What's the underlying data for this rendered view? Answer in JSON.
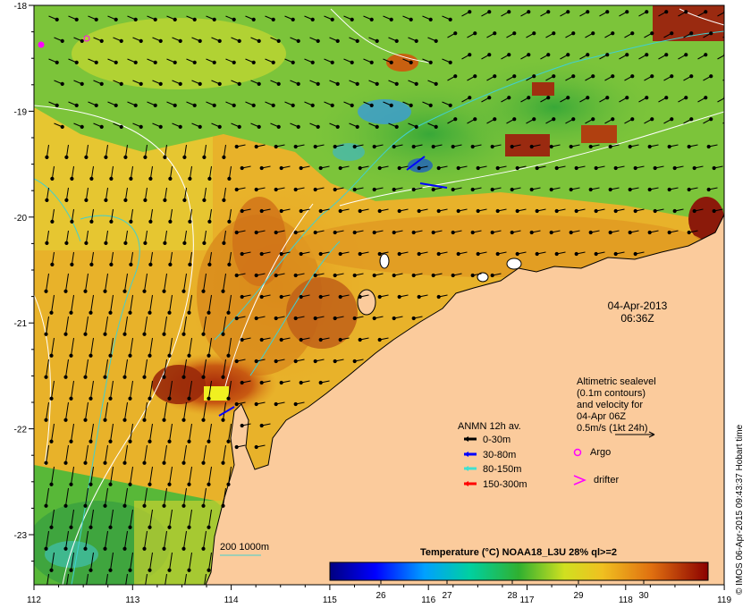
{
  "axes": {
    "lon_ticks": [
      "112",
      "113",
      "114",
      "115",
      "116",
      "117",
      "118",
      "119"
    ],
    "lat_ticks": [
      "-18",
      "-19",
      "-20",
      "-21",
      "-22",
      "-23"
    ]
  },
  "timestamp": {
    "date": "04-Apr-2013",
    "time": "06:36Z"
  },
  "altimetry_note": {
    "lines": [
      "Altimetric sealevel",
      "(0.1m contours)",
      "and velocity for",
      "04-Apr 06Z",
      "0.5m/s (1kt 24h)"
    ]
  },
  "legend": {
    "title": "ANMN 12h av.",
    "items": [
      {
        "label": "0-30m",
        "color": "#000000"
      },
      {
        "label": "30-80m",
        "color": "#0000ff"
      },
      {
        "label": "80-150m",
        "color": "#40e0d0"
      },
      {
        "label": "150-300m",
        "color": "#ff0000"
      }
    ],
    "argo": "Argo",
    "drifter": "drifter"
  },
  "depth_contours_label": "200  1000m",
  "colorbar": {
    "title": "Temperature (°C) NOAA18_L3U 28% ql>=2",
    "ticks": [
      "26",
      "27",
      "28",
      "29",
      "30"
    ]
  },
  "credit": "© IMOS 06-Apr-2015 09:43:37 Hobart time",
  "colors": {
    "land": "#fbcb9c",
    "warm": "#b04a10",
    "mid": "#e8a020",
    "cool": "#40b030",
    "contour": "#ffffff",
    "bathymetry": "#40d0d0"
  }
}
